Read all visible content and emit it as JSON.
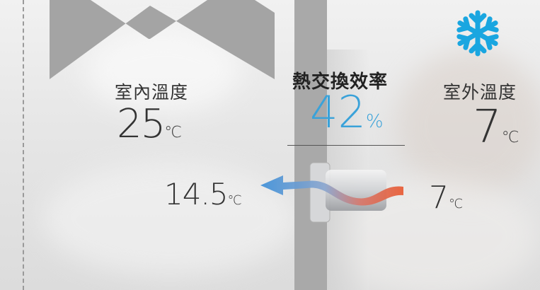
{
  "indoor": {
    "label": "室內溫度",
    "value": "25",
    "unit": "℃"
  },
  "outdoor": {
    "label": "室外溫度",
    "value": "7",
    "unit": "℃"
  },
  "efficiency": {
    "label": "熱交換效率",
    "value": "42",
    "unit": "%",
    "color": "#3aa2d9"
  },
  "airflow": {
    "supply_value": "14.5",
    "supply_unit": "℃",
    "intake_value": "7",
    "intake_unit": "℃",
    "warm_color": "#e85a32",
    "cool_color": "#3d8fd8"
  },
  "icons": {
    "weather": "snowflake-icon",
    "device": "heat-exchanger-icon"
  },
  "colors": {
    "wall": "#a9a9a9",
    "snowflake": "#1aa6e0"
  }
}
